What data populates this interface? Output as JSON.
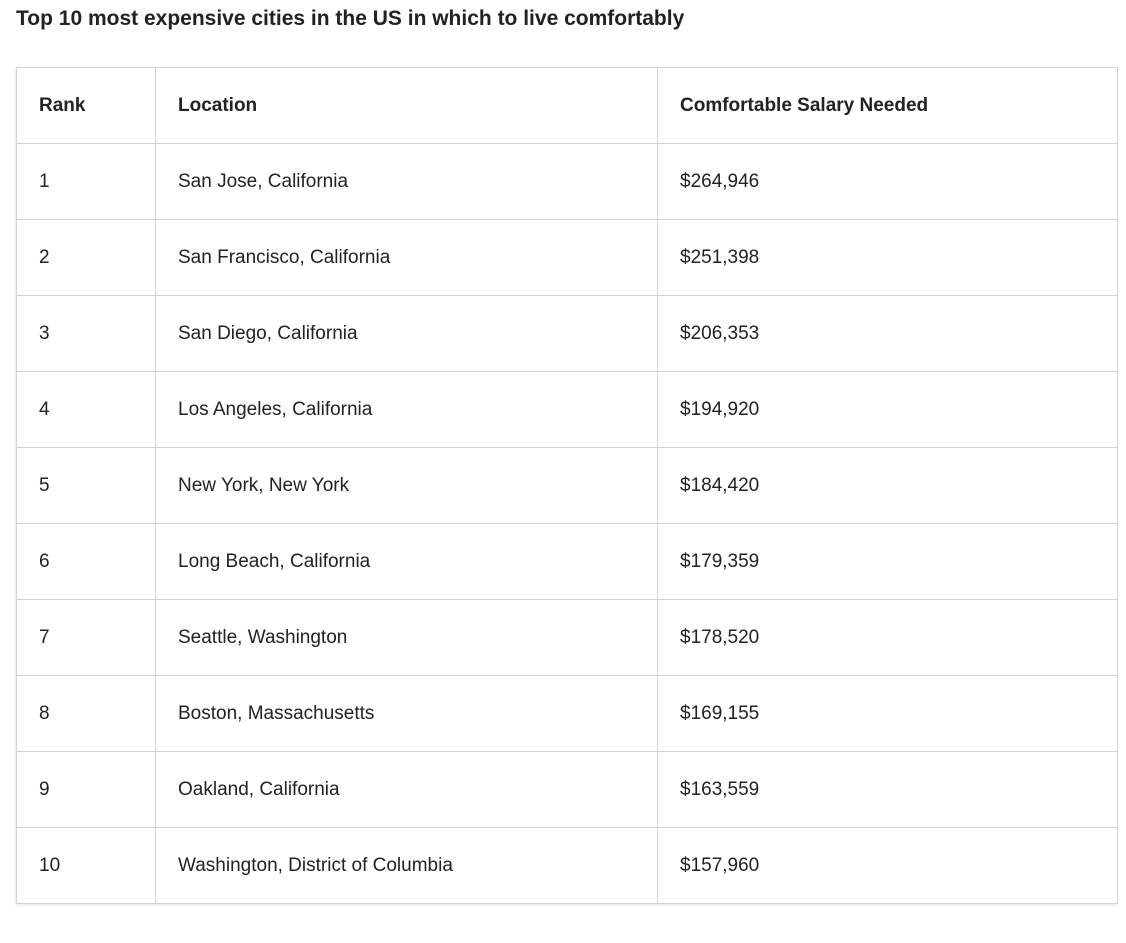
{
  "title": "Top 10 most expensive cities in the US in which to live comfortably",
  "table": {
    "headers": [
      "Rank",
      "Location",
      "Comfortable Salary Needed"
    ],
    "rows": [
      [
        "1",
        "San Jose, California",
        "$264,946"
      ],
      [
        "2",
        "San Francisco, California",
        "$251,398"
      ],
      [
        "3",
        "San Diego, California",
        "$206,353"
      ],
      [
        "4",
        "Los Angeles, California",
        "$194,920"
      ],
      [
        "5",
        "New York, New York",
        "$184,420"
      ],
      [
        "6",
        "Long Beach, California",
        "$179,359"
      ],
      [
        "7",
        "Seattle, Washington",
        "$178,520"
      ],
      [
        "8",
        "Boston, Massachusetts",
        "$169,155"
      ],
      [
        "9",
        "Oakland, California",
        "$163,559"
      ],
      [
        "10",
        "Washington, District of Columbia",
        "$157,960"
      ]
    ]
  }
}
